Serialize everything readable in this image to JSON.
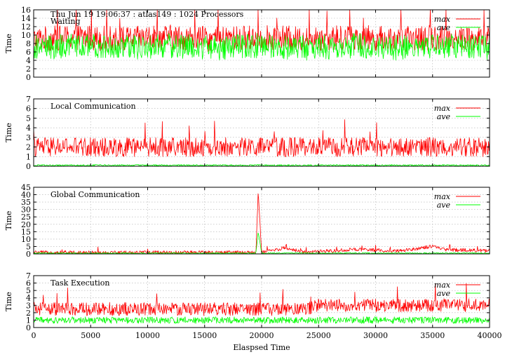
{
  "chart_data": [
    {
      "type": "line",
      "header_text": "Thu Jun 19 19:06:37 : atlas149 : 1024 Processors",
      "title": "Waiting",
      "ylabel": "Time",
      "xlabel": "",
      "xlim": [
        0,
        40000
      ],
      "ylim": [
        0,
        16
      ],
      "yticks": [
        0,
        2,
        4,
        6,
        8,
        10,
        12,
        14,
        16
      ],
      "grid": true,
      "legend_position": "top-right",
      "series": [
        {
          "name": "max",
          "color": "#ff0000",
          "x": [
            0,
            4000,
            8000,
            12000,
            16000,
            20000,
            24000,
            28000,
            32000,
            36000,
            40000
          ],
          "values": [
            9,
            9.5,
            9,
            9.5,
            9,
            9.5,
            9,
            9.5,
            9,
            9.5,
            9
          ]
        },
        {
          "name": "ave",
          "color": "#00ff00",
          "x": [
            0,
            4000,
            8000,
            12000,
            16000,
            20000,
            24000,
            28000,
            32000,
            36000,
            40000
          ],
          "values": [
            7,
            7.5,
            7,
            7.5,
            7,
            7.5,
            7,
            7.5,
            7,
            7.5,
            7
          ]
        }
      ]
    },
    {
      "type": "line",
      "title": "Local Communication",
      "ylabel": "Time",
      "xlabel": "",
      "xlim": [
        0,
        40000
      ],
      "ylim": [
        0,
        7
      ],
      "yticks": [
        0,
        1,
        2,
        3,
        4,
        5,
        6,
        7
      ],
      "grid": true,
      "legend_position": "top-right",
      "series": [
        {
          "name": "max",
          "color": "#ff0000",
          "x": [
            0,
            4000,
            8000,
            12000,
            16000,
            20000,
            24000,
            28000,
            32000,
            36000,
            40000
          ],
          "values": [
            2,
            2,
            2,
            2,
            2,
            2,
            2,
            2,
            2,
            2,
            2
          ]
        },
        {
          "name": "ave",
          "color": "#00ff00",
          "x": [
            0,
            4000,
            8000,
            12000,
            16000,
            20000,
            24000,
            28000,
            32000,
            36000,
            40000
          ],
          "values": [
            0.1,
            0.1,
            0.1,
            0.1,
            0.1,
            0.1,
            0.1,
            0.1,
            0.1,
            0.1,
            0.1
          ]
        }
      ]
    },
    {
      "type": "line",
      "title": "Global Communication",
      "ylabel": "Time",
      "xlabel": "",
      "xlim": [
        0,
        40000
      ],
      "ylim": [
        0,
        45
      ],
      "yticks": [
        0,
        5,
        10,
        15,
        20,
        25,
        30,
        35,
        40,
        45
      ],
      "grid": true,
      "legend_position": "top-right",
      "series": [
        {
          "name": "max",
          "color": "#ff0000",
          "x": [
            0,
            4000,
            8000,
            12000,
            16000,
            19500,
            19700,
            20000,
            22000,
            24000,
            28000,
            32000,
            35000,
            36000,
            40000
          ],
          "values": [
            1,
            1,
            1,
            1,
            1,
            1,
            42,
            1,
            4,
            1,
            3,
            2,
            5,
            3,
            2
          ]
        },
        {
          "name": "ave",
          "color": "#00ff00",
          "x": [
            0,
            4000,
            8000,
            12000,
            16000,
            19500,
            19700,
            20000,
            24000,
            28000,
            32000,
            36000,
            40000
          ],
          "values": [
            0.5,
            0.5,
            0.5,
            0.5,
            0.5,
            0.5,
            15,
            0.5,
            0.5,
            0.5,
            0.5,
            0.5,
            0.5
          ]
        }
      ]
    },
    {
      "type": "line",
      "title": "Task Execution",
      "ylabel": "Time",
      "xlabel": "Elaspsed Time",
      "xlim": [
        0,
        40000
      ],
      "ylim": [
        0,
        7
      ],
      "yticks": [
        0,
        1,
        2,
        3,
        4,
        5,
        6,
        7
      ],
      "xticks": [
        0,
        5000,
        10000,
        15000,
        20000,
        25000,
        30000,
        35000,
        40000
      ],
      "grid": true,
      "legend_position": "top-right",
      "series": [
        {
          "name": "max",
          "color": "#ff0000",
          "x": [
            0,
            4000,
            8000,
            12000,
            16000,
            20000,
            24000,
            25000,
            28000,
            32000,
            36000,
            40000
          ],
          "values": [
            2.5,
            2.5,
            2.5,
            2.5,
            2.5,
            2.5,
            2.5,
            3,
            3,
            3,
            3,
            3
          ]
        },
        {
          "name": "ave",
          "color": "#00ff00",
          "x": [
            0,
            4000,
            8000,
            12000,
            16000,
            20000,
            24000,
            25000,
            28000,
            32000,
            36000,
            40000
          ],
          "values": [
            1,
            1,
            1,
            1,
            1,
            1,
            1,
            1,
            1,
            1,
            1,
            1
          ]
        }
      ]
    }
  ]
}
